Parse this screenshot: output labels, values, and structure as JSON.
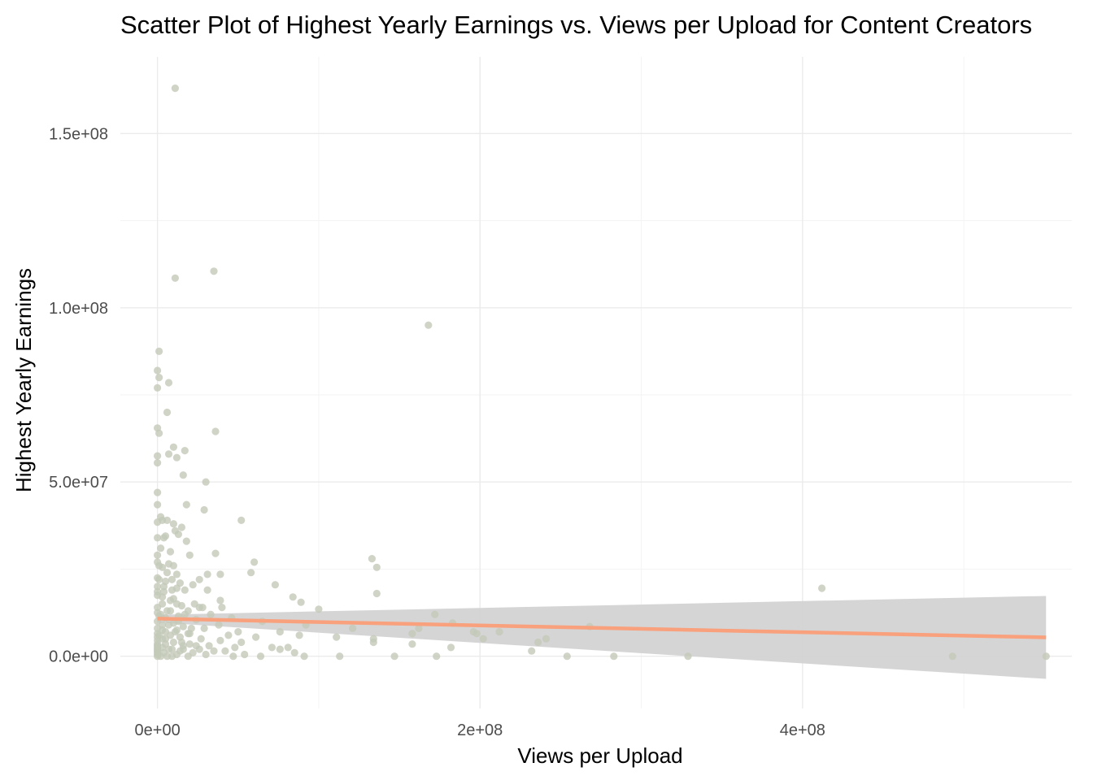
{
  "chart_data": {
    "type": "scatter",
    "title": "Scatter Plot of Highest Yearly Earnings vs. Views per Upload for Content Creators",
    "xlabel": "Views per Upload",
    "ylabel": "Highest Yearly Earnings",
    "xlim": [
      -23000000,
      567000000
    ],
    "ylim": [
      -15000000,
      172000000
    ],
    "x_ticks": [
      {
        "value": 0,
        "label": "0e+00"
      },
      {
        "value": 200000000,
        "label": "2e+08"
      },
      {
        "value": 400000000,
        "label": "4e+08"
      }
    ],
    "x_minor": [
      100000000,
      300000000,
      500000000
    ],
    "y_ticks": [
      {
        "value": 0,
        "label": "0.0e+00"
      },
      {
        "value": 50000000,
        "label": "5.0e+07"
      },
      {
        "value": 100000000,
        "label": "1.0e+08"
      },
      {
        "value": 150000000,
        "label": "1.5e+08"
      }
    ],
    "y_minor": [
      25000000,
      75000000,
      125000000
    ],
    "grid": true,
    "legend": "none",
    "point_color": "#c3c9b8",
    "fit_color": "#f9a07c",
    "ribbon_color": "#d3d3d3",
    "points": [
      [
        11000000,
        163000000
      ],
      [
        35000000,
        110500000
      ],
      [
        11000000,
        108500000
      ],
      [
        168000000,
        95000000
      ],
      [
        1000000,
        87500000
      ],
      [
        0,
        82000000
      ],
      [
        1000000,
        80000000
      ],
      [
        7000000,
        78500000
      ],
      [
        0,
        77000000
      ],
      [
        6000000,
        70000000
      ],
      [
        0,
        65500000
      ],
      [
        36000000,
        64500000
      ],
      [
        1000000,
        64000000
      ],
      [
        10000000,
        60000000
      ],
      [
        17000000,
        59000000
      ],
      [
        7000000,
        58000000
      ],
      [
        0,
        57500000
      ],
      [
        12000000,
        57000000
      ],
      [
        0,
        55500000
      ],
      [
        16000000,
        52000000
      ],
      [
        30000000,
        50000000
      ],
      [
        0,
        47000000
      ],
      [
        18000000,
        43500000
      ],
      [
        0,
        43500000
      ],
      [
        29000000,
        42000000
      ],
      [
        3000000,
        39000000
      ],
      [
        6000000,
        39000000
      ],
      [
        52000000,
        39000000
      ],
      [
        0,
        38500000
      ],
      [
        10000000,
        38000000
      ],
      [
        15000000,
        37000000
      ],
      [
        11000000,
        36000000
      ],
      [
        13000000,
        35000000
      ],
      [
        5000000,
        34500000
      ],
      [
        0,
        34000000
      ],
      [
        18000000,
        33000000
      ],
      [
        8000000,
        30000000
      ],
      [
        36000000,
        29500000
      ],
      [
        0,
        29000000
      ],
      [
        20000000,
        29000000
      ],
      [
        133000000,
        28000000
      ],
      [
        60000000,
        27000000
      ],
      [
        0,
        27000000
      ],
      [
        7000000,
        26500000
      ],
      [
        10000000,
        26000000
      ],
      [
        3000000,
        25500000
      ],
      [
        136000000,
        25500000
      ],
      [
        58000000,
        24000000
      ],
      [
        12000000,
        23500000
      ],
      [
        31000000,
        23500000
      ],
      [
        39000000,
        23500000
      ],
      [
        0,
        22500000
      ],
      [
        9000000,
        22000000
      ],
      [
        26000000,
        22000000
      ],
      [
        5000000,
        21500000
      ],
      [
        14000000,
        21000000
      ],
      [
        22000000,
        20500000
      ],
      [
        73000000,
        20500000
      ],
      [
        0,
        20000000
      ],
      [
        12000000,
        19500000
      ],
      [
        412000000,
        19500000
      ],
      [
        17000000,
        19000000
      ],
      [
        31000000,
        19000000
      ],
      [
        4000000,
        18500000
      ],
      [
        136000000,
        18000000
      ],
      [
        0,
        17500000
      ],
      [
        84000000,
        17000000
      ],
      [
        10000000,
        16500000
      ],
      [
        39000000,
        16000000
      ],
      [
        89000000,
        15500000
      ],
      [
        3000000,
        15000000
      ],
      [
        23000000,
        15000000
      ],
      [
        15000000,
        14500000
      ],
      [
        0,
        14000000
      ],
      [
        28000000,
        14000000
      ],
      [
        40000000,
        14000000
      ],
      [
        100000000,
        13500000
      ],
      [
        8000000,
        13000000
      ],
      [
        19000000,
        13000000
      ],
      [
        0,
        12500000
      ],
      [
        172000000,
        12000000
      ],
      [
        33000000,
        12000000
      ],
      [
        1000000,
        11500000
      ],
      [
        13000000,
        11500000
      ],
      [
        46000000,
        11000000
      ],
      [
        5000000,
        11000000
      ],
      [
        24000000,
        10500000
      ],
      [
        65000000,
        10000000
      ],
      [
        0,
        10000000
      ],
      [
        10000000,
        9500000
      ],
      [
        183000000,
        9500000
      ],
      [
        92000000,
        9000000
      ],
      [
        38000000,
        9000000
      ],
      [
        3000000,
        9000000
      ],
      [
        16000000,
        8500000
      ],
      [
        268000000,
        8500000
      ],
      [
        0,
        8000000
      ],
      [
        121000000,
        8000000
      ],
      [
        162000000,
        8000000
      ],
      [
        29000000,
        8000000
      ],
      [
        12000000,
        7500000
      ],
      [
        76000000,
        7000000
      ],
      [
        50000000,
        7000000
      ],
      [
        196000000,
        7000000
      ],
      [
        5000000,
        7000000
      ],
      [
        212000000,
        7000000
      ],
      [
        0,
        6500000
      ],
      [
        158000000,
        6500000
      ],
      [
        20000000,
        6500000
      ],
      [
        198000000,
        6500000
      ],
      [
        88000000,
        6000000
      ],
      [
        8000000,
        6000000
      ],
      [
        44000000,
        6000000
      ],
      [
        0,
        5500000
      ],
      [
        111000000,
        5500000
      ],
      [
        61000000,
        5500000
      ],
      [
        14000000,
        5500000
      ],
      [
        27000000,
        5000000
      ],
      [
        241000000,
        5000000
      ],
      [
        202000000,
        5000000
      ],
      [
        3000000,
        5000000
      ],
      [
        134000000,
        5000000
      ],
      [
        39000000,
        4500000
      ],
      [
        0,
        4500000
      ],
      [
        236000000,
        4000000
      ],
      [
        10000000,
        4000000
      ],
      [
        134000000,
        4000000
      ],
      [
        52000000,
        4000000
      ],
      [
        0,
        3500000
      ],
      [
        20000000,
        3500000
      ],
      [
        158000000,
        3500000
      ],
      [
        5000000,
        3500000
      ],
      [
        32000000,
        3000000
      ],
      [
        0,
        3000000
      ],
      [
        16000000,
        3000000
      ],
      [
        71000000,
        2500000
      ],
      [
        3000000,
        2500000
      ],
      [
        48000000,
        2500000
      ],
      [
        0,
        2500000
      ],
      [
        81000000,
        2500000
      ],
      [
        182000000,
        2500000
      ],
      [
        26000000,
        2000000
      ],
      [
        9000000,
        2000000
      ],
      [
        76000000,
        2000000
      ],
      [
        0,
        2000000
      ],
      [
        42000000,
        1500000
      ],
      [
        14000000,
        1500000
      ],
      [
        35000000,
        1500000
      ],
      [
        232000000,
        1500000
      ],
      [
        0,
        1500000
      ],
      [
        85000000,
        1000000
      ],
      [
        4000000,
        1000000
      ],
      [
        22000000,
        1000000
      ],
      [
        54000000,
        500000
      ],
      [
        0,
        500000
      ],
      [
        12000000,
        500000
      ],
      [
        30000000,
        500000
      ],
      [
        6000000,
        0
      ],
      [
        0,
        0
      ],
      [
        19000000,
        0
      ],
      [
        47000000,
        0
      ],
      [
        64000000,
        0
      ],
      [
        91000000,
        0
      ],
      [
        113000000,
        0
      ],
      [
        147000000,
        0
      ],
      [
        173000000,
        0
      ],
      [
        254000000,
        0
      ],
      [
        283000000,
        0
      ],
      [
        329000000,
        0
      ],
      [
        493000000,
        0
      ],
      [
        551000000,
        0
      ],
      [
        2000000,
        0
      ],
      [
        9000000,
        0
      ],
      [
        0,
        1000000
      ],
      [
        1000000,
        6000000
      ],
      [
        2000000,
        12000000
      ],
      [
        3000000,
        17000000
      ],
      [
        4000000,
        20000000
      ],
      [
        1000000,
        26000000
      ],
      [
        2000000,
        31000000
      ],
      [
        6000000,
        13000000
      ],
      [
        8000000,
        16000000
      ],
      [
        7000000,
        9000000
      ],
      [
        11000000,
        7000000
      ],
      [
        13000000,
        10000000
      ],
      [
        15000000,
        4000000
      ],
      [
        17000000,
        12000000
      ],
      [
        21000000,
        8000000
      ],
      [
        24000000,
        3000000
      ],
      [
        26000000,
        14000000
      ],
      [
        6000000,
        24000000
      ],
      [
        9000000,
        19000000
      ],
      [
        2000000,
        40000000
      ],
      [
        4000000,
        34000000
      ],
      [
        1000000,
        22000000
      ],
      [
        0,
        18500000
      ],
      [
        5000000,
        5000000
      ],
      [
        7000000,
        2000000
      ],
      [
        3000000,
        7500000
      ],
      [
        12000000,
        15000000
      ],
      [
        19000000,
        6500000
      ],
      [
        16000000,
        2000000
      ]
    ],
    "fit_line": [
      [
        0,
        10800000
      ],
      [
        551000000,
        5400000
      ]
    ],
    "ribbon": {
      "x": [
        0,
        551000000
      ],
      "lower": [
        9700000,
        -6500000
      ],
      "upper": [
        11900000,
        17300000
      ]
    }
  }
}
